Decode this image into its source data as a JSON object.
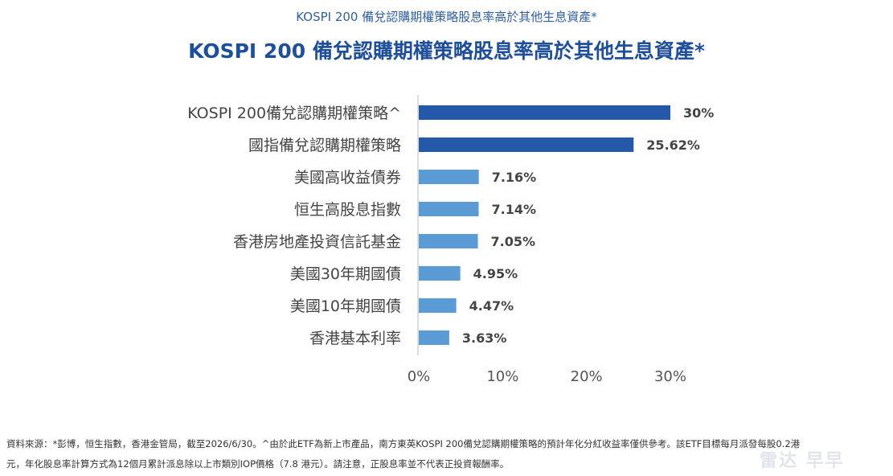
{
  "page": {
    "caption": "KOSPI 200 備兌認購期權策略股息率高於其他生息資產*",
    "footnote_line1": "資料來源：*彭博，恒生指數，香港金管局，截至2026/6/30。^由於此ETF為新上市產品，南方東英KOSPI 200備兌認購期權策略的預計年化分紅收益率僅供參考。該ETF目標每月派發每股0.2港",
    "footnote_line2": "元，年化股息率計算方式為12個月累計派息除以上市類別IOP價格（7.8 港元）。請注意，正股息率並不代表正投資報酬率。",
    "watermark": "雷达 早早"
  },
  "chart_data": {
    "type": "bar",
    "orientation": "horizontal",
    "title": "KOSPI 200 備兌認購期權策略股息率高於其他生息資產*",
    "categories": [
      "KOSPI 200備兌認購期權策略^",
      "國指備兌認購期權策略",
      "美國高收益債券",
      "恒生高股息指數",
      "香港房地產投資信託基金",
      "美國30年期國債",
      "美國10年期國債",
      "香港基本利率"
    ],
    "values": [
      30,
      25.62,
      7.16,
      7.14,
      7.05,
      4.95,
      4.47,
      3.63
    ],
    "value_labels": [
      "30%",
      "25.62%",
      "7.16%",
      "7.14%",
      "7.05%",
      "4.95%",
      "4.47%",
      "3.63%"
    ],
    "highlight": [
      true,
      true,
      false,
      false,
      false,
      false,
      false,
      false
    ],
    "xlim": [
      0,
      30
    ],
    "xticks": [
      0,
      10,
      20,
      30
    ],
    "xtick_labels": [
      "0%",
      "10%",
      "20%",
      "30%"
    ],
    "grid": false,
    "colors": {
      "highlight": "#2359a8",
      "normal": "#5b9bd5",
      "axis": "#d0d0d0"
    }
  }
}
